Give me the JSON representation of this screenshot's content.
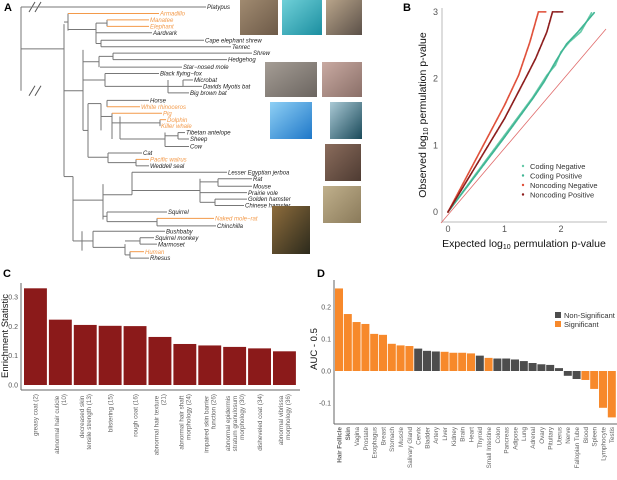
{
  "panels": {
    "a": "A",
    "b": "B",
    "c": "C",
    "d": "D"
  },
  "colors": {
    "highlight_taxon": "#f39a4a",
    "taxon": "#222222",
    "branch": "#777777"
  },
  "tree": {
    "taxa": [
      {
        "name": "Platypus",
        "highlight": false
      },
      {
        "name": "Armadillo",
        "highlight": true
      },
      {
        "name": "Manatee",
        "highlight": true
      },
      {
        "name": "Elephant",
        "highlight": true
      },
      {
        "name": "Aardvark",
        "highlight": false
      },
      {
        "name": "Cape elephant shrew",
        "highlight": false
      },
      {
        "name": "Tenrec",
        "highlight": false
      },
      {
        "name": "Shrew",
        "highlight": false
      },
      {
        "name": "Hedgehog",
        "highlight": false
      },
      {
        "name": "Star−nosed mole",
        "highlight": false
      },
      {
        "name": "Black flying−fox",
        "highlight": false
      },
      {
        "name": "Microbat",
        "highlight": false
      },
      {
        "name": "Davids Myotis bat",
        "highlight": false
      },
      {
        "name": "Big brown bat",
        "highlight": false
      },
      {
        "name": "Horse",
        "highlight": false
      },
      {
        "name": "White rhinoceros",
        "highlight": true
      },
      {
        "name": "Pig",
        "highlight": true
      },
      {
        "name": "Dolphin",
        "highlight": true
      },
      {
        "name": "Killer whale",
        "highlight": true
      },
      {
        "name": "Tibetan antelope",
        "highlight": false
      },
      {
        "name": "Sheep",
        "highlight": false
      },
      {
        "name": "Cow",
        "highlight": false
      },
      {
        "name": "Cat",
        "highlight": false
      },
      {
        "name": "Pacific walrus",
        "highlight": true
      },
      {
        "name": "Weddell seal",
        "highlight": false
      },
      {
        "name": "Lesser Egyptian jerboa",
        "highlight": false
      },
      {
        "name": "Rat",
        "highlight": false
      },
      {
        "name": "Mouse",
        "highlight": false
      },
      {
        "name": "Prairie vole",
        "highlight": false
      },
      {
        "name": "Golden hamster",
        "highlight": false
      },
      {
        "name": "Chinese hamster",
        "highlight": false
      },
      {
        "name": "Squirrel",
        "highlight": false
      },
      {
        "name": "Naked mole−rat",
        "highlight": true
      },
      {
        "name": "Chinchilla",
        "highlight": false
      },
      {
        "name": "Bushbaby",
        "highlight": false
      },
      {
        "name": "Squirrel monkey",
        "highlight": false
      },
      {
        "name": "Marmoset",
        "highlight": false
      },
      {
        "name": "Human",
        "highlight": true
      },
      {
        "name": "Rhesus",
        "highlight": false
      }
    ],
    "photos": [
      "armadillo",
      "manatee",
      "elephant",
      "white-rhinoceros",
      "pig",
      "dolphin",
      "killer-whale",
      "pacific-walrus",
      "naked-mole-rat",
      "human"
    ]
  },
  "chart_data": [
    {
      "panel": "B",
      "type": "scatter",
      "xlabel": "Expected log10 permulation p-value",
      "ylabel": "Observed log10 permulation p-value",
      "xticks": [
        "0",
        "1",
        "2"
      ],
      "yticks": [
        "0",
        "1",
        "2",
        "3"
      ],
      "xlim": [
        -0.1,
        2.75
      ],
      "ylim": [
        -0.15,
        3.1
      ],
      "reference_line": "y = x",
      "legend_position": "bottom-right",
      "series": [
        {
          "name": "Coding Negative",
          "color": "#66c9a8",
          "points": [
            [
              0,
              0
            ],
            [
              0.5,
              0.58
            ],
            [
              1.0,
              1.15
            ],
            [
              1.5,
              1.72
            ],
            [
              1.75,
              2.05
            ],
            [
              1.9,
              2.2
            ],
            [
              2.0,
              2.4
            ],
            [
              2.15,
              2.55
            ],
            [
              2.35,
              2.7
            ],
            [
              2.55,
              3.0
            ]
          ]
        },
        {
          "name": "Coding Positive",
          "color": "#3fb594",
          "points": [
            [
              0,
              0
            ],
            [
              0.5,
              0.56
            ],
            [
              1.0,
              1.12
            ],
            [
              1.5,
              1.7
            ],
            [
              1.7,
              1.95
            ],
            [
              1.9,
              2.25
            ],
            [
              2.1,
              2.52
            ],
            [
              2.3,
              2.7
            ],
            [
              2.6,
              3.0
            ]
          ]
        },
        {
          "name": "Noncoding Negative",
          "color": "#e0503a",
          "points": [
            [
              0,
              0
            ],
            [
              0.5,
              0.8
            ],
            [
              1.0,
              1.6
            ],
            [
              1.25,
              2.05
            ],
            [
              1.35,
              2.3
            ],
            [
              1.45,
              2.55
            ],
            [
              1.5,
              2.7
            ],
            [
              1.55,
              2.85
            ],
            [
              1.6,
              3.0
            ],
            [
              1.75,
              3.0
            ]
          ]
        },
        {
          "name": "Noncoding Positive",
          "color": "#8c1c1c",
          "points": [
            [
              0,
              0
            ],
            [
              0.5,
              0.7
            ],
            [
              1.0,
              1.4
            ],
            [
              1.4,
              2.05
            ],
            [
              1.55,
              2.3
            ],
            [
              1.65,
              2.5
            ],
            [
              1.75,
              2.7
            ],
            [
              1.85,
              3.0
            ],
            [
              2.05,
              3.0
            ]
          ]
        }
      ]
    },
    {
      "panel": "C",
      "type": "bar",
      "ylabel": "Enrichment Statistic",
      "yticks": [
        "0.0",
        "0.1",
        "0.2",
        "0.3"
      ],
      "ylim": [
        0,
        0.35
      ],
      "color": "#8b1a1a",
      "categories": [
        "greasy coat (2)",
        "abnormal hair cuticle (10)",
        "decreased skin tensile strength (13)",
        "blistering (15)",
        "rough coat (16)",
        "abnormal hair texture (21)",
        "abnormal hair shaft morphology (24)",
        "impaired skin barrier function (26)",
        "abnormal epidermis stratum granulosum morphology (30)",
        "disheveled coat (34)",
        "abnormal vibrissa morphology (36)"
      ],
      "values": [
        0.33,
        0.223,
        0.205,
        0.202,
        0.201,
        0.164,
        0.14,
        0.135,
        0.13,
        0.125,
        0.115
      ]
    },
    {
      "panel": "D",
      "type": "bar",
      "ylabel": "AUC - 0.5",
      "yticks": [
        "-0.1",
        "0.0",
        "0.1",
        "0.2"
      ],
      "ylim": [
        -0.16,
        0.27
      ],
      "legend_position": "right",
      "legend": [
        {
          "name": "Non-Significant",
          "color": "#4d4d4d"
        },
        {
          "name": "Significant",
          "color": "#f7892b"
        }
      ],
      "categories": [
        "Hair Follicle",
        "Skin",
        "Vagina",
        "Prostate",
        "Esophagus",
        "Breast",
        "Stomach",
        "Muscle",
        "Salivary Gland",
        "Cervix",
        "Bladder",
        "Artery",
        "Liver",
        "Kidney",
        "Brain",
        "Heart",
        "Thyroid",
        "Small Intestine",
        "Colon",
        "Pancreas",
        "Adipose",
        "Lung",
        "Adrenal",
        "Ovary",
        "Pituitary",
        "Uterus",
        "Nerve",
        "Fallopian Tube",
        "Blood",
        "Spleen",
        "Lymphocyte",
        "Testis"
      ],
      "values": [
        0.258,
        0.178,
        0.153,
        0.147,
        0.116,
        0.113,
        0.085,
        0.08,
        0.078,
        0.07,
        0.063,
        0.061,
        0.06,
        0.057,
        0.057,
        0.055,
        0.048,
        0.041,
        0.039,
        0.039,
        0.036,
        0.031,
        0.025,
        0.021,
        0.019,
        0.009,
        -0.015,
        -0.025,
        -0.028,
        -0.056,
        -0.115,
        -0.145
      ],
      "significant": [
        true,
        true,
        true,
        true,
        true,
        true,
        true,
        true,
        true,
        false,
        false,
        false,
        true,
        true,
        true,
        true,
        false,
        true,
        false,
        false,
        false,
        false,
        false,
        false,
        false,
        false,
        false,
        false,
        true,
        true,
        true,
        true
      ],
      "bold_labels": [
        "Hair Follicle",
        "Skin"
      ]
    }
  ]
}
